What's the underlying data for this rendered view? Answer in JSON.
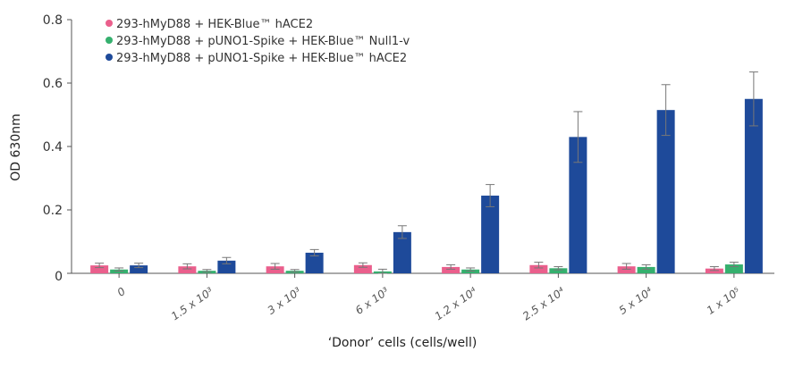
{
  "chart_data": {
    "type": "bar",
    "title": "",
    "xlabel": "‘Donor’ cells (cells/well)",
    "ylabel": "OD 630nm",
    "ylim": [
      0,
      0.8
    ],
    "yticks": [
      "0",
      "0.2",
      "0.4",
      "0.6",
      "0.8"
    ],
    "grid": false,
    "legend_position": "top-left",
    "categories": [
      "0",
      "1.5 x 10³",
      "3 x 10³",
      "6 x 10³",
      "1.2 x 10⁴",
      "2.5 x 10⁴",
      "5 x 10⁴",
      "1 x 10⁵"
    ],
    "series": [
      {
        "name": "293-hMyD88 + HEK-Blue™ hACE2",
        "color": "#ea5f8c",
        "values": [
          0.025,
          0.022,
          0.022,
          0.026,
          0.02,
          0.026,
          0.022,
          0.015
        ],
        "errors": [
          0.007,
          0.008,
          0.009,
          0.007,
          0.007,
          0.009,
          0.009,
          0.006
        ]
      },
      {
        "name": "293-hMyD88 + pUNO1-Spike + HEK-Blue™ Null1-v",
        "color": "#35b06e",
        "values": [
          0.012,
          0.008,
          0.008,
          0.006,
          0.012,
          0.016,
          0.02,
          0.028
        ],
        "errors": [
          0.005,
          0.004,
          0.004,
          0.007,
          0.005,
          0.005,
          0.007,
          0.007
        ]
      },
      {
        "name": "293-hMyD88 + pUNO1-Spike + HEK-Blue™ hACE2",
        "color": "#1e4a9a",
        "values": [
          0.025,
          0.04,
          0.065,
          0.13,
          0.245,
          0.43,
          0.515,
          0.55
        ],
        "errors": [
          0.007,
          0.01,
          0.01,
          0.02,
          0.035,
          0.08,
          0.08,
          0.085
        ]
      }
    ]
  }
}
